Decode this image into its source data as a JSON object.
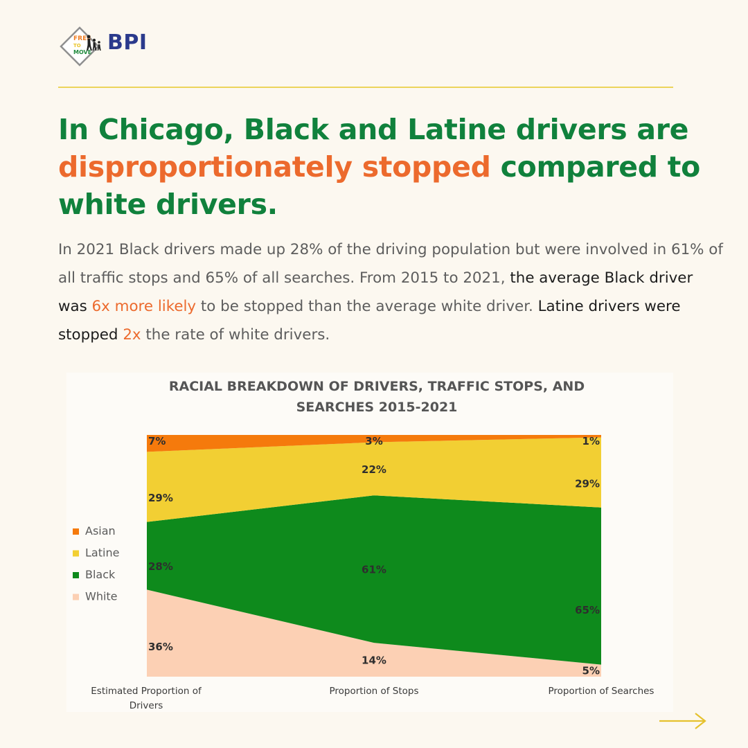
{
  "brand": {
    "logo_text": [
      "FREE",
      "TO",
      "MOVE"
    ],
    "name": "BPI",
    "colors": {
      "navy": "#2b3a8c",
      "orange": "#ef7d23",
      "green": "#1f8a3c",
      "yellow": "#e9c326"
    }
  },
  "headline": {
    "part1": "In Chicago, Black and Latine drivers are ",
    "highlight": "disproportionately stopped",
    "part2": " compared to white drivers."
  },
  "body": {
    "s1": "In 2021 Black drivers made up 28% of the driving population but were involved in 61% of all traffic stops and 65% of all searches. From 2015 to 2021, ",
    "s2": "the average Black driver was ",
    "s3": "6x more likely",
    "s4": " to be stopped than the average white driver.",
    "s5": " ",
    "s6": "Latine drivers were stopped ",
    "s7": "2x",
    "s8": " the rate of white drivers."
  },
  "chart_data": {
    "type": "area",
    "stacked": true,
    "percent": true,
    "title_lines": [
      "RACIAL BREAKDOWN OF DRIVERS, TRAFFIC STOPS, AND",
      "SEARCHES 2015-2021"
    ],
    "categories": [
      [
        "Estimated Proportion of",
        "Drivers"
      ],
      [
        "Proportion of Stops"
      ],
      [
        "Proportion of Searches"
      ]
    ],
    "series": [
      {
        "name": "White",
        "values": [
          36,
          14,
          5
        ],
        "color": "#fcd0b4"
      },
      {
        "name": "Black",
        "values": [
          28,
          61,
          65
        ],
        "color": "#0e8a1c"
      },
      {
        "name": "Latine",
        "values": [
          29,
          22,
          29
        ],
        "color": "#f2cf33"
      },
      {
        "name": "Asian",
        "values": [
          7,
          3,
          1
        ],
        "color": "#f57a0c"
      }
    ],
    "legend_order": [
      "Asian",
      "Latine",
      "Black",
      "White"
    ],
    "legend_position": "left",
    "ylim": [
      0,
      100
    ]
  },
  "nav": {
    "arrow_icon": "right-arrow-icon",
    "color": "#e5c12c"
  }
}
